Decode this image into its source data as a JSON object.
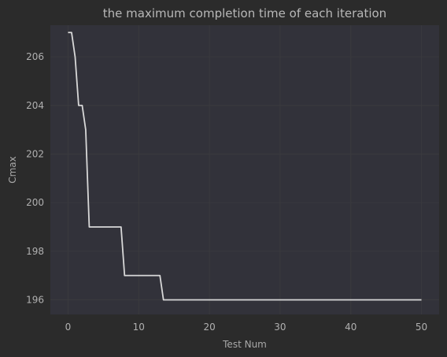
{
  "chart_data": {
    "type": "line",
    "title": "the maximum completion time of each iteration",
    "xlabel": "Test Num",
    "ylabel": "Cmax",
    "xlim": [
      -2.5,
      52.5
    ],
    "ylim": [
      195.4,
      207.3
    ],
    "xticks": [
      0,
      10,
      20,
      30,
      40,
      50
    ],
    "yticks": [
      196,
      198,
      200,
      202,
      204,
      206
    ],
    "grid": true,
    "legend": "none",
    "series": [
      {
        "color": "#d8d8d8",
        "x": [
          0,
          0.5,
          1,
          1.5,
          2,
          2.5,
          3,
          7.5,
          8,
          13,
          13.5,
          50
        ],
        "y": [
          207,
          207,
          206,
          204,
          204,
          203,
          199,
          199,
          197,
          197,
          196,
          196
        ]
      }
    ]
  },
  "colors": {
    "background": "#2b2b2b",
    "plot_area": "#32323a",
    "grid": "#3a3a3e",
    "line": "#d8d8d8",
    "text": "#b0b0b0"
  }
}
